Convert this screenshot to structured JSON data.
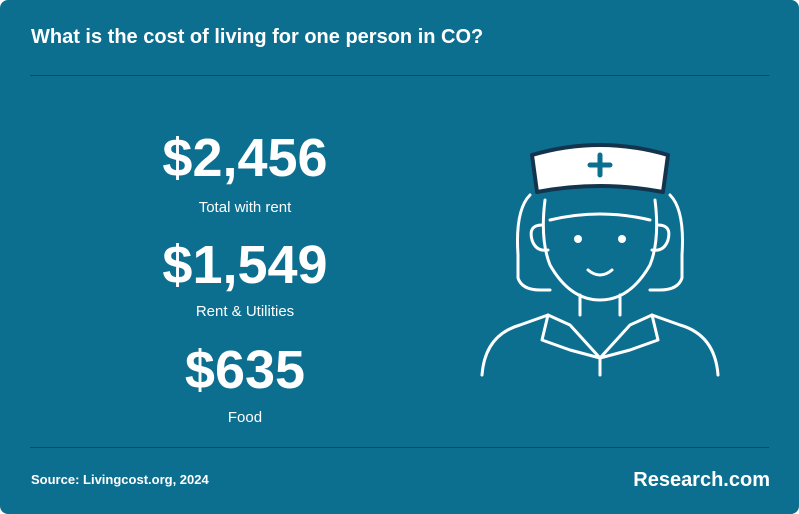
{
  "header": {
    "title": "What is the cost of living for one person in CO?"
  },
  "stats": [
    {
      "value": "$2,456",
      "label": "Total with rent"
    },
    {
      "value": "$1,549",
      "label": "Rent & Utilities"
    },
    {
      "value": "$635",
      "label": "Food"
    }
  ],
  "footer": {
    "source": "Source: Livingcost.org, 2024",
    "brand": "Research.com"
  }
}
